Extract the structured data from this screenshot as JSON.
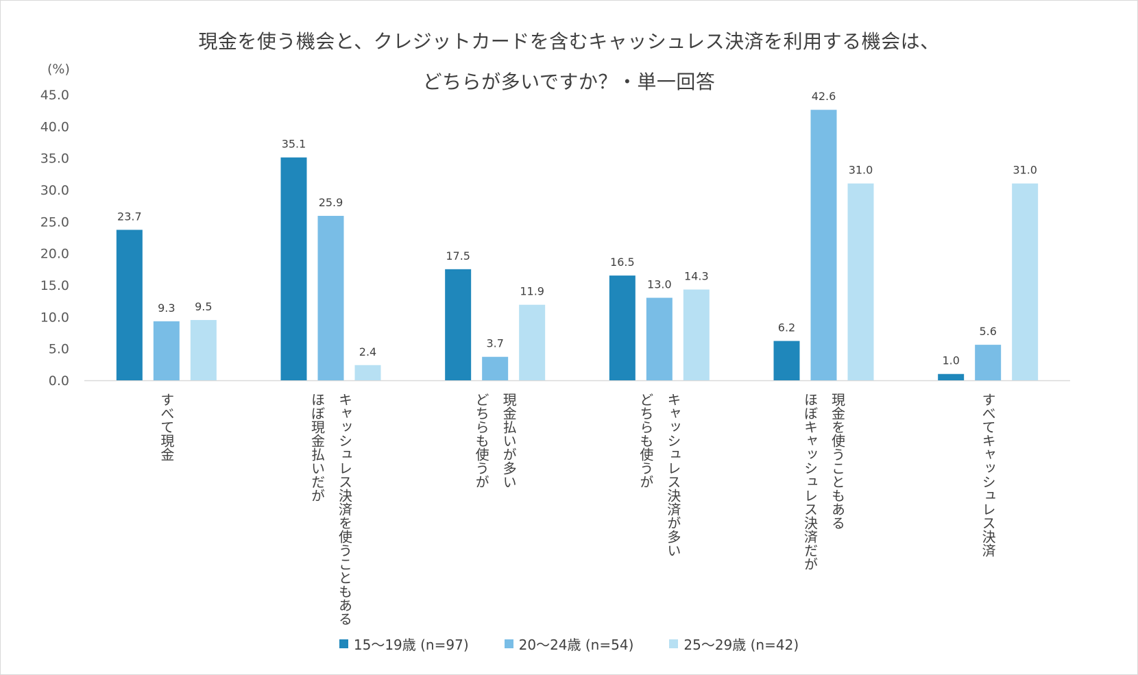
{
  "chart_data": {
    "type": "bar",
    "title_line1": "現金を使う機会と、クレジットカードを含むキャッシュレス決済を利用する機会は、",
    "title_line2": "どちらが多いですか？・単一回答",
    "y_unit": "(%)",
    "ylim": [
      0,
      45
    ],
    "y_ticks": [
      "0.0",
      "5.0",
      "10.0",
      "15.0",
      "20.0",
      "25.0",
      "30.0",
      "35.0",
      "40.0",
      "45.0"
    ],
    "grid": false,
    "legend_position": "bottom",
    "categories": [
      [
        "すべて現金"
      ],
      [
        "キャッシュレス決済を使うこともある",
        "ほぼ現金払いだが"
      ],
      [
        "現金払いが多い",
        "どちらも使うが"
      ],
      [
        "キャッシュレス決済が多い",
        "どちらも使うが"
      ],
      [
        "現金を使うこともある",
        "ほぼキャッシュレス決済だが"
      ],
      [
        "すべてキャッシュレス決済"
      ]
    ],
    "series": [
      {
        "name": "15〜19歳 (n=97)",
        "color": "#1f87bb",
        "values": [
          23.7,
          35.1,
          17.5,
          16.5,
          6.2,
          1.0
        ]
      },
      {
        "name": "20〜24歳 (n=54)",
        "color": "#79bde6",
        "values": [
          9.3,
          25.9,
          3.7,
          13.0,
          42.6,
          5.6
        ]
      },
      {
        "name": "25〜29歳 (n=42)",
        "color": "#b7e0f3",
        "values": [
          9.5,
          2.4,
          11.9,
          14.3,
          31.0,
          31.0
        ]
      }
    ]
  }
}
